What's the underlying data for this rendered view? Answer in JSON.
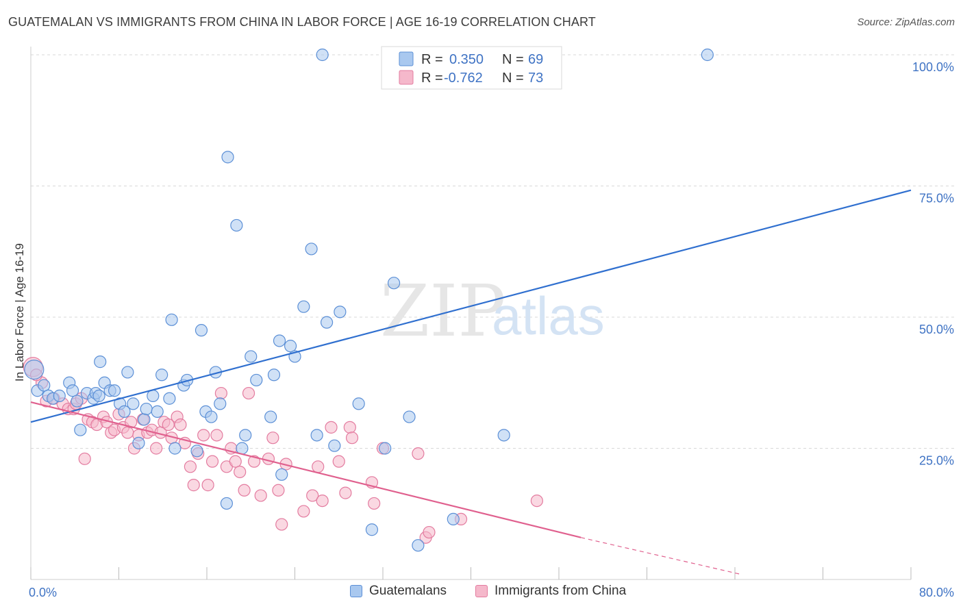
{
  "title": "GUATEMALAN VS IMMIGRANTS FROM CHINA IN LABOR FORCE | AGE 16-19 CORRELATION CHART",
  "source": "Source: ZipAtlas.com",
  "watermark": {
    "zip": "ZIP",
    "atlas": "atlas"
  },
  "legend_top": {
    "r_label": "R =",
    "n_label": "N =",
    "rows": [
      {
        "r": "0.350",
        "n": "69"
      },
      {
        "r": "-0.762",
        "n": "73"
      }
    ]
  },
  "colors": {
    "series1_fill": "#a9c8ef",
    "series1_stroke": "#5b8fd6",
    "series1_line": "#2f6fcf",
    "series2_fill": "#f5b8cb",
    "series2_stroke": "#e37b9f",
    "series2_line": "#e0608e",
    "axis_label": "#3f73c4",
    "grid": "#d8d8d8"
  },
  "chart_data": {
    "type": "scatter",
    "title": "GUATEMALAN VS IMMIGRANTS FROM CHINA IN LABOR FORCE | AGE 16-19 CORRELATION CHART",
    "xlabel": "",
    "ylabel": "In Labor Force | Age 16-19",
    "xlim": [
      0,
      80
    ],
    "ylim": [
      0,
      102
    ],
    "x_tick_labels": [
      "0.0%",
      "80.0%"
    ],
    "y_tick_labels": [
      "25.0%",
      "50.0%",
      "75.0%",
      "100.0%"
    ],
    "y_ticks": [
      25,
      50,
      75,
      100
    ],
    "grid": true,
    "legend_position": "top-center",
    "series": [
      {
        "name": "Guatemalans",
        "r": 0.35,
        "n": 69,
        "trend": {
          "x": [
            0,
            80
          ],
          "y": [
            30.0,
            74.2
          ],
          "dashed_from": null
        },
        "points": [
          [
            0.3,
            40.0
          ],
          [
            0.6,
            36.0
          ],
          [
            1.2,
            37.0
          ],
          [
            1.6,
            35.0
          ],
          [
            2.0,
            34.5
          ],
          [
            2.6,
            35.0
          ],
          [
            3.5,
            37.5
          ],
          [
            3.8,
            36.0
          ],
          [
            4.2,
            34.0
          ],
          [
            4.5,
            28.5
          ],
          [
            5.1,
            35.5
          ],
          [
            5.7,
            34.5
          ],
          [
            5.9,
            35.5
          ],
          [
            6.2,
            35.0
          ],
          [
            6.3,
            41.5
          ],
          [
            6.7,
            37.5
          ],
          [
            7.2,
            36.0
          ],
          [
            7.6,
            36.0
          ],
          [
            8.1,
            33.5
          ],
          [
            8.5,
            32.0
          ],
          [
            8.8,
            39.5
          ],
          [
            9.3,
            33.5
          ],
          [
            9.8,
            26.0
          ],
          [
            10.3,
            30.5
          ],
          [
            10.5,
            32.5
          ],
          [
            11.1,
            35.0
          ],
          [
            11.5,
            32.0
          ],
          [
            11.9,
            39.0
          ],
          [
            12.6,
            34.5
          ],
          [
            12.8,
            49.5
          ],
          [
            13.1,
            25.0
          ],
          [
            13.9,
            37.0
          ],
          [
            14.2,
            38.0
          ],
          [
            15.1,
            24.5
          ],
          [
            15.5,
            47.5
          ],
          [
            15.9,
            32.0
          ],
          [
            16.4,
            31.0
          ],
          [
            16.8,
            39.5
          ],
          [
            17.2,
            33.5
          ],
          [
            17.8,
            14.5
          ],
          [
            17.9,
            80.5
          ],
          [
            18.7,
            67.5
          ],
          [
            19.2,
            25.0
          ],
          [
            19.5,
            27.5
          ],
          [
            20.0,
            42.5
          ],
          [
            20.5,
            38.0
          ],
          [
            21.8,
            31.0
          ],
          [
            22.1,
            39.0
          ],
          [
            22.6,
            45.5
          ],
          [
            22.8,
            20.0
          ],
          [
            23.6,
            44.5
          ],
          [
            24.0,
            42.5
          ],
          [
            24.8,
            52.0
          ],
          [
            25.5,
            63.0
          ],
          [
            26.0,
            27.5
          ],
          [
            26.5,
            100.0
          ],
          [
            26.9,
            49.0
          ],
          [
            27.6,
            25.5
          ],
          [
            28.1,
            51.0
          ],
          [
            29.8,
            33.5
          ],
          [
            31.0,
            9.5
          ],
          [
            32.2,
            25.0
          ],
          [
            33.0,
            56.5
          ],
          [
            34.4,
            31.0
          ],
          [
            35.2,
            6.5
          ],
          [
            36.2,
            100.0
          ],
          [
            38.4,
            11.5
          ],
          [
            43.0,
            27.5
          ],
          [
            61.5,
            100.0
          ]
        ]
      },
      {
        "name": "Immigrants from China",
        "r": -0.762,
        "n": 73,
        "trend": {
          "x": [
            0,
            50
          ],
          "y": [
            33.8,
            8.0
          ],
          "dashed_to": {
            "x": 64.5,
            "y": 1.0
          }
        },
        "points": [
          [
            0.2,
            40.5
          ],
          [
            1.0,
            37.5
          ],
          [
            1.4,
            34.0
          ],
          [
            2.1,
            34.5
          ],
          [
            2.9,
            33.5
          ],
          [
            3.4,
            32.5
          ],
          [
            3.9,
            32.5
          ],
          [
            4.1,
            33.5
          ],
          [
            4.6,
            34.5
          ],
          [
            4.9,
            23.0
          ],
          [
            5.2,
            30.5
          ],
          [
            5.6,
            30.0
          ],
          [
            6.0,
            29.5
          ],
          [
            6.6,
            31.0
          ],
          [
            6.9,
            30.0
          ],
          [
            7.3,
            28.0
          ],
          [
            7.6,
            28.5
          ],
          [
            8.0,
            31.5
          ],
          [
            8.4,
            29.0
          ],
          [
            8.8,
            28.0
          ],
          [
            9.1,
            30.0
          ],
          [
            9.4,
            25.0
          ],
          [
            9.8,
            27.5
          ],
          [
            10.2,
            30.5
          ],
          [
            10.6,
            28.0
          ],
          [
            11.0,
            28.5
          ],
          [
            11.4,
            25.0
          ],
          [
            11.8,
            28.0
          ],
          [
            12.1,
            30.0
          ],
          [
            12.5,
            29.5
          ],
          [
            12.8,
            27.0
          ],
          [
            13.3,
            31.0
          ],
          [
            13.6,
            29.5
          ],
          [
            14.0,
            26.0
          ],
          [
            14.5,
            21.5
          ],
          [
            14.8,
            18.0
          ],
          [
            15.2,
            24.0
          ],
          [
            15.7,
            27.5
          ],
          [
            16.1,
            18.0
          ],
          [
            16.5,
            22.5
          ],
          [
            16.9,
            27.5
          ],
          [
            17.3,
            35.5
          ],
          [
            17.8,
            21.5
          ],
          [
            18.2,
            25.0
          ],
          [
            18.6,
            22.5
          ],
          [
            19.0,
            20.5
          ],
          [
            19.4,
            17.0
          ],
          [
            19.8,
            35.5
          ],
          [
            20.3,
            22.5
          ],
          [
            20.9,
            16.0
          ],
          [
            21.6,
            23.0
          ],
          [
            22.0,
            27.0
          ],
          [
            22.5,
            17.0
          ],
          [
            22.8,
            10.5
          ],
          [
            23.2,
            22.0
          ],
          [
            24.8,
            13.0
          ],
          [
            25.6,
            16.0
          ],
          [
            26.1,
            21.5
          ],
          [
            26.5,
            15.0
          ],
          [
            27.3,
            29.0
          ],
          [
            28.0,
            22.5
          ],
          [
            28.6,
            16.5
          ],
          [
            29.0,
            29.0
          ],
          [
            29.2,
            27.0
          ],
          [
            31.0,
            18.5
          ],
          [
            31.2,
            14.5
          ],
          [
            32.0,
            25.0
          ],
          [
            35.2,
            24.0
          ],
          [
            35.9,
            8.0
          ],
          [
            36.2,
            9.0
          ],
          [
            39.1,
            11.5
          ],
          [
            46.0,
            15.0
          ],
          [
            0.5,
            39.0
          ]
        ]
      }
    ]
  },
  "legend_bottom": [
    {
      "label": "Guatemalans"
    },
    {
      "label": "Immigrants from China"
    }
  ]
}
